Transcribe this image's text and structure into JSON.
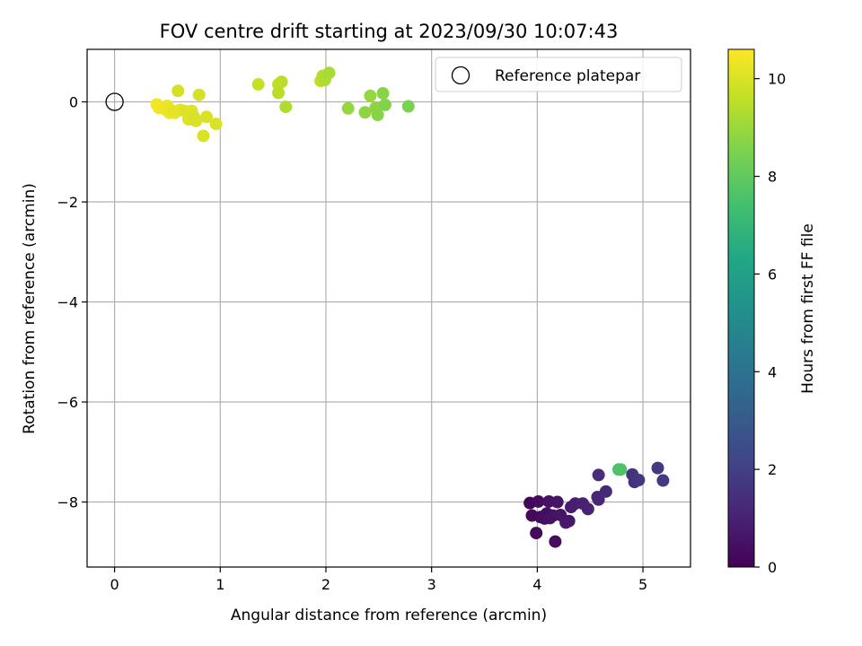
{
  "chart_data": {
    "type": "scatter",
    "title": "FOV centre drift starting at 2023/09/30 10:07:43",
    "xlabel": "Angular distance from reference (arcmin)",
    "ylabel": "Rotation from reference (arcmin)",
    "xlim": [
      -0.26,
      5.45
    ],
    "ylim": [
      -9.3,
      1.05
    ],
    "xticks": [
      0,
      1,
      2,
      3,
      4,
      5
    ],
    "yticks": [
      0,
      -2,
      -4,
      -6,
      -8
    ],
    "grid": true,
    "legend": {
      "placement": "top-right",
      "entries": [
        "Reference platepar"
      ]
    },
    "reference_point": {
      "x": 0,
      "y": 0,
      "name": "Reference platepar",
      "marker": "open-circle"
    },
    "colorbar": {
      "label": "Hours from first FF file",
      "range": [
        0,
        10.6
      ],
      "ticks": [
        0,
        2,
        4,
        6,
        8,
        10
      ],
      "colormap": "viridis"
    },
    "points": [
      {
        "x": 0.4,
        "y": -0.05,
        "c": 10.4
      },
      {
        "x": 0.42,
        "y": -0.12,
        "c": 10.4
      },
      {
        "x": 0.48,
        "y": -0.15,
        "c": 10.3
      },
      {
        "x": 0.5,
        "y": -0.08,
        "c": 10.3
      },
      {
        "x": 0.52,
        "y": -0.22,
        "c": 10.3
      },
      {
        "x": 0.55,
        "y": -0.18,
        "c": 10.2
      },
      {
        "x": 0.57,
        "y": -0.22,
        "c": 10.2
      },
      {
        "x": 0.6,
        "y": 0.22,
        "c": 9.9
      },
      {
        "x": 0.62,
        "y": -0.16,
        "c": 10.2
      },
      {
        "x": 0.66,
        "y": -0.18,
        "c": 10.1
      },
      {
        "x": 0.7,
        "y": -0.35,
        "c": 10.1
      },
      {
        "x": 0.73,
        "y": -0.18,
        "c": 10.1
      },
      {
        "x": 0.75,
        "y": -0.3,
        "c": 10.0
      },
      {
        "x": 0.77,
        "y": -0.38,
        "c": 10.0
      },
      {
        "x": 0.8,
        "y": 0.14,
        "c": 9.9
      },
      {
        "x": 0.84,
        "y": -0.68,
        "c": 10.0
      },
      {
        "x": 0.87,
        "y": -0.3,
        "c": 10.0
      },
      {
        "x": 0.96,
        "y": -0.44,
        "c": 10.0
      },
      {
        "x": 1.36,
        "y": 0.35,
        "c": 9.7
      },
      {
        "x": 1.55,
        "y": 0.35,
        "c": 9.6
      },
      {
        "x": 1.55,
        "y": 0.18,
        "c": 9.5
      },
      {
        "x": 1.58,
        "y": 0.4,
        "c": 9.5
      },
      {
        "x": 1.62,
        "y": -0.1,
        "c": 9.3
      },
      {
        "x": 1.95,
        "y": 0.42,
        "c": 9.6
      },
      {
        "x": 1.97,
        "y": 0.52,
        "c": 9.4
      },
      {
        "x": 1.99,
        "y": 0.44,
        "c": 9.3
      },
      {
        "x": 2.03,
        "y": 0.58,
        "c": 9.2
      },
      {
        "x": 2.21,
        "y": -0.13,
        "c": 8.9
      },
      {
        "x": 2.37,
        "y": -0.21,
        "c": 8.8
      },
      {
        "x": 2.42,
        "y": 0.12,
        "c": 8.9
      },
      {
        "x": 2.47,
        "y": -0.12,
        "c": 8.8
      },
      {
        "x": 2.49,
        "y": -0.26,
        "c": 8.7
      },
      {
        "x": 2.54,
        "y": 0.17,
        "c": 8.7
      },
      {
        "x": 2.56,
        "y": -0.06,
        "c": 8.6
      },
      {
        "x": 2.78,
        "y": -0.09,
        "c": 8.5
      },
      {
        "x": 3.93,
        "y": -8.02,
        "c": 0.1
      },
      {
        "x": 3.95,
        "y": -8.27,
        "c": 0.2
      },
      {
        "x": 3.99,
        "y": -8.62,
        "c": 0.2
      },
      {
        "x": 4.01,
        "y": -7.99,
        "c": 0.3
      },
      {
        "x": 4.03,
        "y": -8.3,
        "c": 0.3
      },
      {
        "x": 4.07,
        "y": -8.33,
        "c": 0.4
      },
      {
        "x": 4.09,
        "y": -8.23,
        "c": 0.4
      },
      {
        "x": 4.11,
        "y": -7.99,
        "c": 0.5
      },
      {
        "x": 4.12,
        "y": -8.32,
        "c": 0.5
      },
      {
        "x": 4.15,
        "y": -8.27,
        "c": 0.5
      },
      {
        "x": 4.17,
        "y": -8.79,
        "c": 0.4
      },
      {
        "x": 4.19,
        "y": -8.0,
        "c": 0.6
      },
      {
        "x": 4.22,
        "y": -8.26,
        "c": 0.6
      },
      {
        "x": 4.27,
        "y": -8.41,
        "c": 0.7
      },
      {
        "x": 4.3,
        "y": -8.38,
        "c": 0.7
      },
      {
        "x": 4.32,
        "y": -8.1,
        "c": 0.8
      },
      {
        "x": 4.36,
        "y": -8.03,
        "c": 0.9
      },
      {
        "x": 4.43,
        "y": -8.03,
        "c": 1.0
      },
      {
        "x": 4.48,
        "y": -8.14,
        "c": 1.0
      },
      {
        "x": 4.57,
        "y": -7.9,
        "c": 1.2
      },
      {
        "x": 4.58,
        "y": -7.46,
        "c": 1.4
      },
      {
        "x": 4.58,
        "y": -7.95,
        "c": 1.2
      },
      {
        "x": 4.65,
        "y": -7.79,
        "c": 1.3
      },
      {
        "x": 4.77,
        "y": -7.35,
        "c": 7.6
      },
      {
        "x": 4.79,
        "y": -7.35,
        "c": 7.6
      },
      {
        "x": 4.9,
        "y": -7.45,
        "c": 1.6
      },
      {
        "x": 4.92,
        "y": -7.6,
        "c": 1.6
      },
      {
        "x": 4.96,
        "y": -7.56,
        "c": 1.7
      },
      {
        "x": 5.14,
        "y": -7.32,
        "c": 1.8
      },
      {
        "x": 5.19,
        "y": -7.57,
        "c": 1.8
      }
    ]
  }
}
